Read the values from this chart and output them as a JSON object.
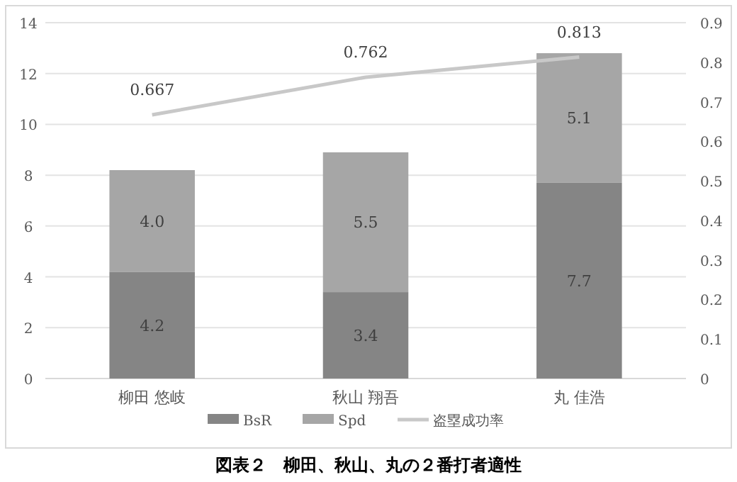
{
  "chart_data": {
    "type": "bar",
    "title": "図表２　柳田、秋山、丸の２番打者適性",
    "categories": [
      "柳田 悠岐",
      "秋山 翔吾",
      "丸 佳浩"
    ],
    "stacked": true,
    "series": [
      {
        "name": "BsR",
        "color": "#858585",
        "values": [
          4.2,
          3.4,
          7.7
        ],
        "value_labels": [
          "4.2",
          "3.4",
          "7.7"
        ]
      },
      {
        "name": "Spd",
        "color": "#a6a6a6",
        "values": [
          4.0,
          5.5,
          5.1
        ],
        "value_labels": [
          "4.0",
          "5.5",
          "5.1"
        ]
      },
      {
        "name": "盗塁成功率",
        "type": "line",
        "axis": "y2",
        "color": "#c8c8c8",
        "values": [
          0.667,
          0.762,
          0.813
        ]
      }
    ],
    "ylim": [
      0,
      14
    ],
    "yticks": [
      0,
      2,
      4,
      6,
      8,
      10,
      12,
      14
    ],
    "y2lim": [
      0,
      0.9
    ],
    "y2ticks": [
      0,
      0.1,
      0.2,
      0.3,
      0.4,
      0.5,
      0.6,
      0.7,
      0.8,
      0.9
    ],
    "data_labels": true,
    "grid": "y",
    "legend": "bottom",
    "marker": "none"
  }
}
